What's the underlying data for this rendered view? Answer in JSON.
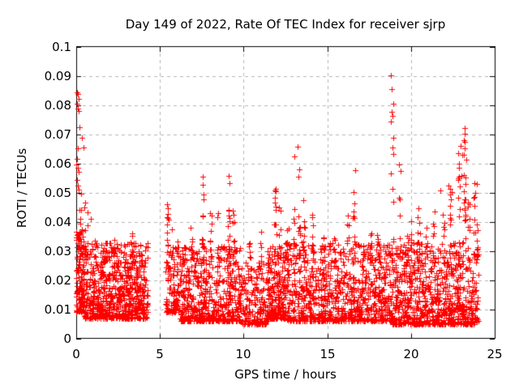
{
  "page": {
    "background": "#ffffff"
  },
  "chart_data": {
    "type": "scatter",
    "title": "Day 149 of 2022, Rate Of TEC Index for receiver sjrp",
    "xlabel": "GPS time / hours",
    "ylabel": "ROTI / TECUs",
    "xlim": [
      0,
      25
    ],
    "ylim": [
      0,
      0.1
    ],
    "xticks": {
      "values": [
        0,
        5,
        10,
        15,
        20,
        25
      ],
      "labels": [
        "0",
        "5",
        "10",
        "15",
        "20",
        "25"
      ]
    },
    "yticks": {
      "values": [
        0,
        0.01,
        0.02,
        0.03,
        0.04,
        0.05,
        0.06,
        0.07,
        0.08,
        0.09,
        0.1
      ],
      "labels": [
        "0",
        "0.01",
        "0.02",
        "0.03",
        "0.04",
        "0.05",
        "0.06",
        "0.07",
        "0.08",
        "0.09",
        "0.1"
      ]
    },
    "grid": {
      "on": true,
      "style": "dashed",
      "color": "#b5b5b5"
    },
    "border_color": "#000000",
    "legend": "none",
    "marker": {
      "shape": "plus",
      "color": "#ff0000",
      "size": 7
    },
    "series": [
      {
        "name": "ROTI",
        "representation": "distribution",
        "seed": 20220149,
        "data_gap_hours": [
          4.3,
          5.35
        ],
        "baseline_segments": [
          [
            0.0,
            0.45,
            140,
            0.009,
            0.038,
            1.6
          ],
          [
            0.45,
            4.3,
            700,
            0.007,
            0.033,
            1.8
          ],
          [
            5.35,
            6.2,
            120,
            0.009,
            0.034,
            1.8
          ],
          [
            6.2,
            9.8,
            560,
            0.006,
            0.032,
            2.0
          ],
          [
            9.8,
            11.4,
            190,
            0.005,
            0.027,
            2.0
          ],
          [
            11.4,
            12.5,
            210,
            0.007,
            0.032,
            2.0
          ],
          [
            12.5,
            18.75,
            880,
            0.006,
            0.033,
            2.0
          ],
          [
            18.75,
            24.02,
            800,
            0.005,
            0.033,
            1.9
          ]
        ],
        "spikes": [
          [
            0.25,
            0.046,
            8
          ],
          [
            0.6,
            0.044,
            6
          ],
          [
            1.15,
            0.037,
            6
          ],
          [
            1.7,
            0.034,
            5
          ],
          [
            2.3,
            0.035,
            5
          ],
          [
            2.9,
            0.033,
            5
          ],
          [
            3.35,
            0.036,
            5
          ],
          [
            3.8,
            0.034,
            4
          ],
          [
            5.45,
            0.047,
            10
          ],
          [
            5.75,
            0.042,
            7
          ],
          [
            6.4,
            0.04,
            7
          ],
          [
            6.9,
            0.042,
            7
          ],
          [
            7.55,
            0.054,
            12
          ],
          [
            8.05,
            0.046,
            8
          ],
          [
            8.5,
            0.044,
            8
          ],
          [
            9.1,
            0.054,
            14
          ],
          [
            9.4,
            0.048,
            8
          ],
          [
            10.35,
            0.038,
            6
          ],
          [
            11.05,
            0.039,
            6
          ],
          [
            11.9,
            0.051,
            12
          ],
          [
            12.15,
            0.047,
            8
          ],
          [
            12.65,
            0.043,
            7
          ],
          [
            13.05,
            0.052,
            10
          ],
          [
            13.3,
            0.058,
            10
          ],
          [
            13.6,
            0.049,
            9
          ],
          [
            14.15,
            0.043,
            7
          ],
          [
            14.75,
            0.039,
            6
          ],
          [
            15.45,
            0.04,
            7
          ],
          [
            16.25,
            0.043,
            8
          ],
          [
            16.6,
            0.05,
            12
          ],
          [
            17.15,
            0.041,
            6
          ],
          [
            17.6,
            0.037,
            5
          ],
          [
            18.05,
            0.037,
            6
          ],
          [
            18.88,
            0.057,
            9
          ],
          [
            19.32,
            0.051,
            8
          ],
          [
            19.8,
            0.043,
            6
          ],
          [
            20.0,
            0.042,
            7
          ],
          [
            20.45,
            0.046,
            8
          ],
          [
            20.9,
            0.04,
            6
          ],
          [
            21.35,
            0.048,
            8
          ],
          [
            21.95,
            0.043,
            7
          ],
          [
            22.35,
            0.052,
            10
          ],
          [
            22.85,
            0.059,
            10
          ],
          [
            23.2,
            0.065,
            14
          ],
          [
            23.45,
            0.05,
            10
          ],
          [
            23.8,
            0.052,
            10
          ],
          [
            23.95,
            0.048,
            8
          ]
        ],
        "outliers": [
          [
            0.05,
            0.0845
          ],
          [
            0.09,
            0.0838
          ],
          [
            0.13,
            0.0822
          ],
          [
            0.07,
            0.0806
          ],
          [
            0.11,
            0.079
          ],
          [
            0.15,
            0.078
          ],
          [
            0.21,
            0.0724
          ],
          [
            0.36,
            0.0688
          ],
          [
            0.42,
            0.0655
          ],
          [
            0.1,
            0.0652
          ],
          [
            0.04,
            0.0618
          ],
          [
            0.02,
            0.0598
          ],
          [
            0.08,
            0.0586
          ],
          [
            0.13,
            0.0572
          ],
          [
            0.05,
            0.0544
          ],
          [
            0.1,
            0.0526
          ],
          [
            0.16,
            0.051
          ],
          [
            0.31,
            0.0498
          ],
          [
            0.55,
            0.0468
          ],
          [
            0.47,
            0.045
          ],
          [
            0.7,
            0.0432
          ],
          [
            0.85,
            0.0412
          ],
          [
            5.42,
            0.0462
          ],
          [
            5.47,
            0.0448
          ],
          [
            7.55,
            0.0556
          ],
          [
            7.58,
            0.0528
          ],
          [
            9.1,
            0.0558
          ],
          [
            9.15,
            0.0532
          ],
          [
            11.92,
            0.0514
          ],
          [
            13.02,
            0.0625
          ],
          [
            13.21,
            0.0658
          ],
          [
            13.27,
            0.0555
          ],
          [
            16.67,
            0.0578
          ],
          [
            16.55,
            0.0502
          ],
          [
            18.8,
            0.0902
          ],
          [
            18.86,
            0.0856
          ],
          [
            18.92,
            0.0806
          ],
          [
            18.84,
            0.0778
          ],
          [
            18.9,
            0.0764
          ],
          [
            18.82,
            0.0744
          ],
          [
            18.95,
            0.0688
          ],
          [
            18.88,
            0.0655
          ],
          [
            18.93,
            0.0632
          ],
          [
            19.3,
            0.0598
          ],
          [
            19.36,
            0.0576
          ],
          [
            21.77,
            0.0508
          ],
          [
            22.25,
            0.0524
          ],
          [
            22.32,
            0.0515
          ],
          [
            22.8,
            0.0637
          ],
          [
            22.8,
            0.055
          ],
          [
            22.85,
            0.0601
          ],
          [
            22.87,
            0.0586
          ],
          [
            22.98,
            0.066
          ],
          [
            23.0,
            0.0557
          ],
          [
            23.05,
            0.0631
          ],
          [
            23.15,
            0.0506
          ],
          [
            23.16,
            0.0681
          ],
          [
            23.19,
            0.0721
          ],
          [
            23.2,
            0.0703
          ],
          [
            23.21,
            0.0653
          ],
          [
            23.22,
            0.0676
          ],
          [
            23.25,
            0.0554
          ],
          [
            23.31,
            0.0614
          ],
          [
            23.79,
            0.0533
          ],
          [
            23.95,
            0.0531
          ]
        ]
      }
    ]
  }
}
